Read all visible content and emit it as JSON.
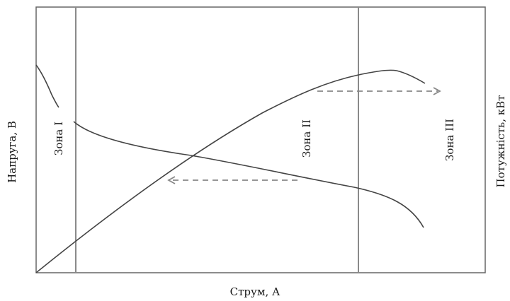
{
  "diagram": {
    "x_label": "Струм, А",
    "y_label_left": "Напруга, В",
    "y_label_right": "Потужність, кВт",
    "zones": [
      "Зона I",
      "Зона II",
      "Зона III"
    ],
    "colors": {
      "frame": "#666666",
      "curve": "#444444",
      "divider": "#8a8a8a",
      "arrow": "#888888",
      "text": "#1a1a1a"
    }
  }
}
